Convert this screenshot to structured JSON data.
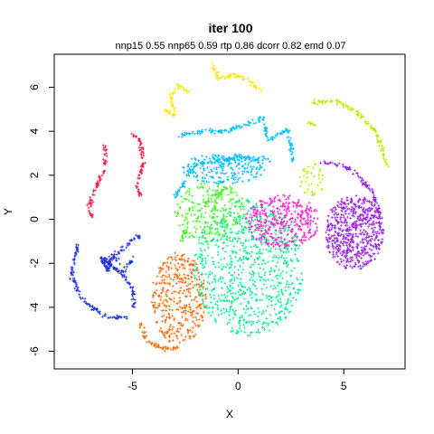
{
  "chart_data": {
    "type": "scatter",
    "title": "iter 100",
    "subtitle": "nnp15 0.55 nnp65 0.59 rtp 0.86 dcorr 0.82 emd 0.07",
    "xlabel": "X",
    "ylabel": "Y",
    "xlim": [
      -8.7,
      7.9
    ],
    "ylim": [
      -6.8,
      7.5
    ],
    "x_ticks": [
      -5,
      0,
      5
    ],
    "y_ticks": [
      6,
      4,
      2,
      0,
      -2,
      -4,
      -6
    ],
    "grid": false,
    "legend": "none",
    "series": [
      {
        "color": "#FF1744",
        "paths": [
          [
            [
              -6.3,
              3.3
            ],
            [
              -6.3,
              2.3
            ],
            [
              -6.8,
              1.3
            ],
            [
              -7.1,
              0.5
            ],
            [
              -6.9,
              0.1
            ]
          ],
          [
            [
              -5.0,
              3.9
            ],
            [
              -4.6,
              3.5
            ],
            [
              -4.5,
              2.5
            ],
            [
              -4.8,
              1.5
            ],
            [
              -4.6,
              1.0
            ]
          ]
        ],
        "cluster": {
          "cx": 0,
          "cy": 0,
          "rx": 0,
          "ry": 0,
          "n": 0
        }
      },
      {
        "color": "#FFE600",
        "paths": [
          [
            [
              -3.5,
              5.0
            ],
            [
              -3.0,
              4.7
            ],
            [
              -3.2,
              5.6
            ],
            [
              -2.8,
              6.1
            ],
            [
              -2.3,
              5.8
            ]
          ],
          [
            [
              -1.2,
              7.0
            ],
            [
              -0.9,
              6.3
            ],
            [
              -0.3,
              6.6
            ],
            [
              0.5,
              6.3
            ],
            [
              1.1,
              5.8
            ]
          ]
        ],
        "cluster": {
          "cx": 0,
          "cy": 0,
          "rx": 0,
          "ry": 0,
          "n": 0
        }
      },
      {
        "color": "#B7F000",
        "paths": [
          [
            [
              3.5,
              5.3
            ],
            [
              4.6,
              5.4
            ],
            [
              5.6,
              4.9
            ],
            [
              6.5,
              4.0
            ],
            [
              7.1,
              2.4
            ]
          ],
          [
            [
              3.3,
              4.4
            ],
            [
              3.8,
              4.2
            ]
          ]
        ],
        "cluster": {
          "cx": 3.5,
          "cy": 1.8,
          "rx": 0.6,
          "ry": 0.8,
          "n": 40
        }
      },
      {
        "color": "#00BFFF",
        "paths": [
          [
            [
              -2.8,
              3.8
            ],
            [
              -1.6,
              4.0
            ],
            [
              -0.5,
              4.0
            ],
            [
              1.2,
              4.6
            ],
            [
              1.4,
              3.6
            ],
            [
              2.4,
              4.1
            ],
            [
              2.6,
              2.6
            ]
          ],
          [
            [
              -3.0,
              1.0
            ],
            [
              -2.0,
              2.5
            ],
            [
              0.0,
              2.8
            ],
            [
              1.5,
              2.7
            ]
          ]
        ],
        "cluster": {
          "cx": -0.7,
          "cy": 2.3,
          "rx": 2.0,
          "ry": 0.7,
          "n": 220
        }
      },
      {
        "color": "#1E2FE6",
        "paths": [
          [
            [
              -6.5,
              -1.7
            ],
            [
              -6.2,
              -2.3
            ],
            [
              -6.0,
              -1.8
            ],
            [
              -5.0,
              -0.9
            ],
            [
              -4.6,
              -0.8
            ]
          ],
          [
            [
              -7.6,
              -1.2
            ],
            [
              -7.9,
              -2.5
            ],
            [
              -7.4,
              -3.6
            ],
            [
              -6.4,
              -4.4
            ],
            [
              -5.3,
              -4.5
            ]
          ],
          [
            [
              -5.5,
              -2.5
            ],
            [
              -5.0,
              -3.2
            ],
            [
              -4.9,
              -4.0
            ]
          ],
          [
            [
              -6.5,
              -1.7
            ],
            [
              -5.5,
              -2.5
            ],
            [
              -5.0,
              -1.8
            ]
          ]
        ],
        "cluster": {
          "cx": -6.0,
          "cy": -2.0,
          "rx": 0.5,
          "ry": 0.4,
          "n": 30
        }
      },
      {
        "color": "#FF6A00",
        "paths": [
          [
            [
              -4.6,
              -4.8
            ],
            [
              -4.3,
              -5.5
            ],
            [
              -3.6,
              -5.9
            ],
            [
              -2.8,
              -5.9
            ]
          ]
        ],
        "cluster": {
          "cx": -2.8,
          "cy": -3.6,
          "rx": 1.3,
          "ry": 2.1,
          "n": 380
        }
      },
      {
        "color": "#00F08A",
        "paths": [],
        "cluster": {
          "cx": 0.5,
          "cy": -2.2,
          "rx": 2.6,
          "ry": 3.1,
          "n": 820
        }
      },
      {
        "color": "#39FF14",
        "paths": [
          [
            [
              -2.5,
              -0.5
            ],
            [
              -2.7,
              -1.0
            ]
          ],
          [
            [
              -1.0,
              1.0
            ],
            [
              -0.5,
              1.5
            ]
          ]
        ],
        "cluster": {
          "cx": -1.3,
          "cy": 0.3,
          "rx": 1.7,
          "ry": 1.4,
          "n": 230
        }
      },
      {
        "color": "#FF1ACF",
        "paths": [],
        "cluster": {
          "cx": 2.1,
          "cy": -0.1,
          "rx": 1.8,
          "ry": 1.2,
          "n": 340
        }
      },
      {
        "color": "#9B1CF2",
        "paths": [
          [
            [
              4.0,
              2.6
            ],
            [
              5.3,
              2.3
            ],
            [
              6.3,
              1.3
            ],
            [
              6.8,
              0.0
            ]
          ]
        ],
        "cluster": {
          "cx": 5.5,
          "cy": -0.6,
          "rx": 1.4,
          "ry": 1.7,
          "n": 560
        }
      }
    ]
  }
}
